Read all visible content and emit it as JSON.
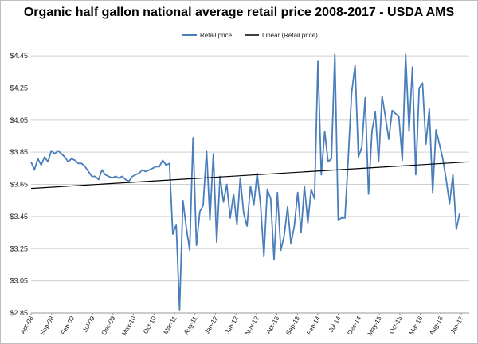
{
  "chart_data": {
    "type": "line",
    "title": "Organic half gallon national average retail price 2008-2017 - USDA AMS",
    "xlabel": "",
    "ylabel": "",
    "ylim": [
      2.85,
      4.5
    ],
    "yticks": [
      "$2.85",
      "$3.05",
      "$3.25",
      "$3.45",
      "$3.65",
      "$3.85",
      "$4.05",
      "$4.25",
      "$4.45"
    ],
    "grid": "horizontal",
    "legend_position": "top",
    "x_labels": [
      "Apr-08",
      "Sep-08",
      "Feb-09",
      "Jul-09",
      "Dec-09",
      "May-10",
      "Oct-10",
      "Mar-11",
      "Aug-11",
      "Jan-12",
      "Jun-12",
      "Nov-12",
      "Apr-13",
      "Sep-13",
      "Feb-14",
      "Jul-14",
      "Dec-14",
      "May-15",
      "Oct-15",
      "Mar-16",
      "Aug-16",
      "Jan-17"
    ],
    "series": [
      {
        "name": "Retail price",
        "color": "#4a7ebb",
        "values": [
          3.79,
          3.74,
          3.81,
          3.77,
          3.82,
          3.79,
          3.86,
          3.84,
          3.86,
          3.84,
          3.82,
          3.79,
          3.81,
          3.8,
          3.78,
          3.78,
          3.76,
          3.73,
          3.7,
          3.7,
          3.68,
          3.74,
          3.71,
          3.7,
          3.69,
          3.7,
          3.69,
          3.7,
          3.68,
          3.67,
          3.7,
          3.71,
          3.72,
          3.74,
          3.73,
          3.74,
          3.75,
          3.76,
          3.76,
          3.8,
          3.77,
          3.78,
          3.34,
          3.4,
          2.87,
          3.55,
          3.38,
          3.24,
          3.94,
          3.27,
          3.48,
          3.52,
          3.86,
          3.43,
          3.84,
          3.29,
          3.7,
          3.54,
          3.65,
          3.44,
          3.59,
          3.4,
          3.69,
          3.47,
          3.39,
          3.64,
          3.52,
          3.72,
          3.52,
          3.2,
          3.62,
          3.56,
          3.18,
          3.6,
          3.24,
          3.33,
          3.51,
          3.28,
          3.39,
          3.6,
          3.35,
          3.64,
          3.41,
          3.62,
          3.56,
          4.42,
          3.71,
          3.98,
          3.79,
          3.81,
          4.46,
          3.43,
          3.44,
          3.44,
          3.82,
          4.22,
          4.39,
          3.82,
          3.88,
          4.19,
          3.59,
          3.98,
          4.1,
          3.79,
          4.2,
          4.07,
          3.93,
          4.11,
          4.09,
          4.07,
          3.8,
          4.46,
          3.98,
          4.38,
          3.71,
          4.25,
          4.28,
          3.9,
          4.12,
          3.6,
          3.99,
          3.9,
          3.81,
          3.68,
          3.53,
          3.71,
          3.37,
          3.47
        ]
      },
      {
        "name": "Linear (Retail price)",
        "color": "#000000",
        "trend": [
          3.625,
          3.79
        ]
      }
    ]
  }
}
